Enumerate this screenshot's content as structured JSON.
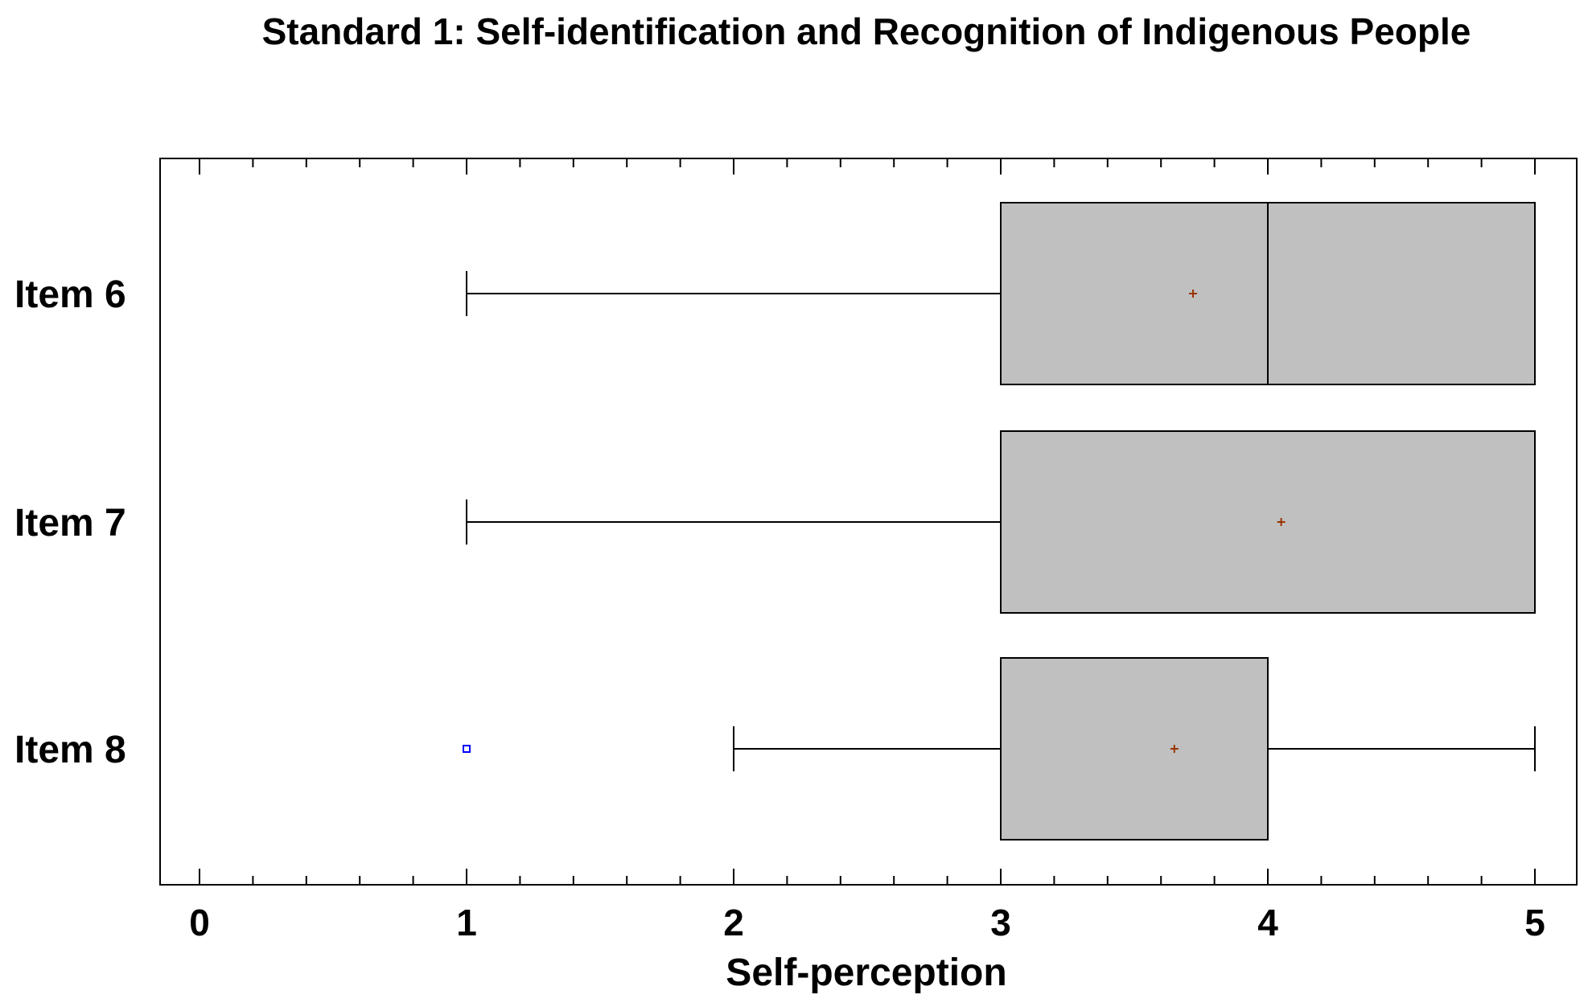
{
  "chart_data": {
    "type": "boxplot",
    "orientation": "horizontal",
    "title": "Standard 1: Self-identification and Recognition of Indigenous People",
    "xlabel": "Self-perception",
    "ylabel": "",
    "xlim": [
      0,
      5
    ],
    "x_ticks": [
      "0",
      "1",
      "2",
      "3",
      "4",
      "5"
    ],
    "grid": false,
    "box_fill": "#c0c0c0",
    "mean_marker_color": "#993300",
    "outlier_color": "#0000ff",
    "categories": [
      "Item 6",
      "Item 7",
      "Item 8"
    ],
    "boxes": [
      {
        "label": "Item 6",
        "whisker_low": 1,
        "q1": 3,
        "median": 4,
        "q3": 5,
        "whisker_high": 5,
        "mean": 3.72,
        "outliers": []
      },
      {
        "label": "Item 7",
        "whisker_low": 1,
        "q1": 3,
        "median": 5,
        "q3": 5,
        "whisker_high": 5,
        "mean": 4.05,
        "outliers": []
      },
      {
        "label": "Item 8",
        "whisker_low": 2,
        "q1": 3,
        "median": 4,
        "q3": 4,
        "whisker_high": 5,
        "mean": 3.65,
        "outliers": [
          1
        ]
      }
    ]
  }
}
